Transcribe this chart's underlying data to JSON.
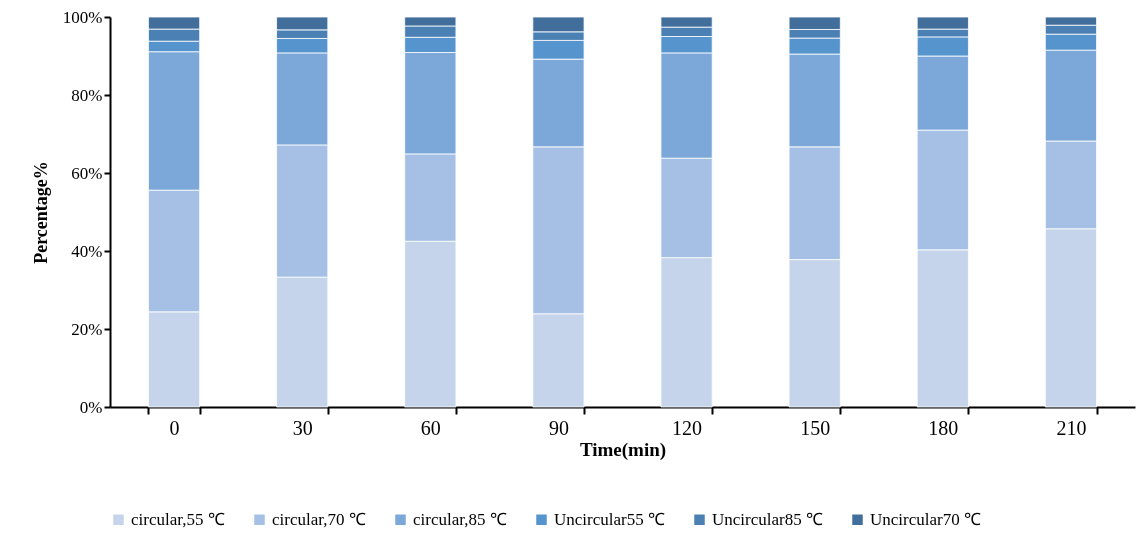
{
  "chart_data": {
    "type": "bar",
    "stacked": true,
    "xlabel": "Time(min)",
    "ylabel": "Percentage%",
    "categories": [
      "0",
      "30",
      "60",
      "90",
      "120",
      "150",
      "180",
      "210"
    ],
    "ylim": [
      0,
      100
    ],
    "yticks": [
      {
        "value": 0,
        "label": "0%"
      },
      {
        "value": 20,
        "label": "20%"
      },
      {
        "value": 40,
        "label": "40%"
      },
      {
        "value": 60,
        "label": "60%"
      },
      {
        "value": 80,
        "label": "80%"
      },
      {
        "value": 100,
        "label": "100%"
      }
    ],
    "legend": "bottom",
    "grid": false,
    "series": [
      {
        "name": "circular,55 ℃",
        "color": "#c5d4ea",
        "values": [
          24.4,
          33.3,
          42.5,
          23.9,
          38.3,
          37.8,
          40.3,
          45.7
        ]
      },
      {
        "name": "circular,70 ℃",
        "color": "#a5c0e4",
        "values": [
          31.2,
          33.9,
          22.4,
          42.8,
          25.5,
          28.9,
          30.7,
          22.5
        ]
      },
      {
        "name": "circular,85 ℃",
        "color": "#7ba8d9",
        "values": [
          35.5,
          23.6,
          26.0,
          22.5,
          27.0,
          23.8,
          19.0,
          23.3
        ]
      },
      {
        "name": "Uncircular55 ℃",
        "color": "#5594cc",
        "values": [
          2.7,
          3.7,
          3.9,
          4.8,
          4.2,
          4.1,
          4.9,
          4.1
        ]
      },
      {
        "name": "Uncircular85 ℃",
        "color": "#4a80b4",
        "values": [
          3.1,
          2.2,
          2.9,
          2.2,
          2.4,
          2.2,
          2.0,
          2.3
        ]
      },
      {
        "name": "Uncircular70 ℃",
        "color": "#416e9a",
        "values": [
          3.1,
          3.3,
          2.3,
          3.8,
          2.6,
          3.2,
          3.1,
          2.1
        ]
      }
    ]
  }
}
